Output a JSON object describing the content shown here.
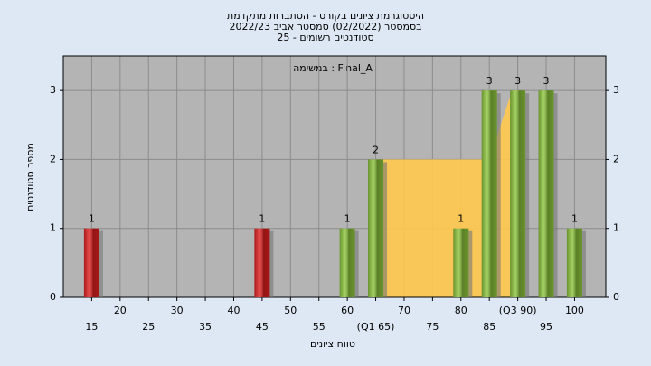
{
  "chart_data": {
    "type": "bar",
    "title": [
      "היסטוגרמת ציונים בקורס - הסתברות מתקדמת",
      "בסמסטר  (02/2022)  סמסטר אביב 2022/23",
      "סטודנטים רשומים - 25"
    ],
    "annotation": "במשימה : Final_A",
    "x_label": "טווח ציונים",
    "y_label": "מספר סטודנטים",
    "x": [
      15,
      45,
      60,
      65,
      80,
      85,
      90,
      95,
      100
    ],
    "values": [
      1,
      1,
      1,
      2,
      1,
      3,
      3,
      3,
      1
    ],
    "value_labels": [
      "1",
      "1",
      "1",
      "2",
      "1",
      "3",
      "3",
      "3",
      "1"
    ],
    "colors": [
      "#e02020",
      "#e02020",
      "#8cc43c",
      "#8cc43c",
      "#8cc43c",
      "#8cc43c",
      "#8cc43c",
      "#8cc43c",
      "#8cc43c"
    ],
    "area": {
      "color": "#ffc94d",
      "x": [
        65,
        65,
        85,
        89,
        90,
        90
      ],
      "values": [
        0,
        2,
        2,
        3,
        3,
        0
      ]
    },
    "xlim": [
      10,
      105.5
    ],
    "ylim": [
      0,
      3.5
    ],
    "xticks": [
      15,
      20,
      25,
      30,
      35,
      40,
      45,
      50,
      55,
      60,
      {
        "value": 65,
        "label": "(Q1 65)"
      },
      70,
      75,
      80,
      85,
      {
        "value": 90,
        "label": "(Q3 90)"
      },
      95,
      100
    ],
    "yticks": [
      0,
      1,
      2,
      3
    ],
    "grid": true
  }
}
